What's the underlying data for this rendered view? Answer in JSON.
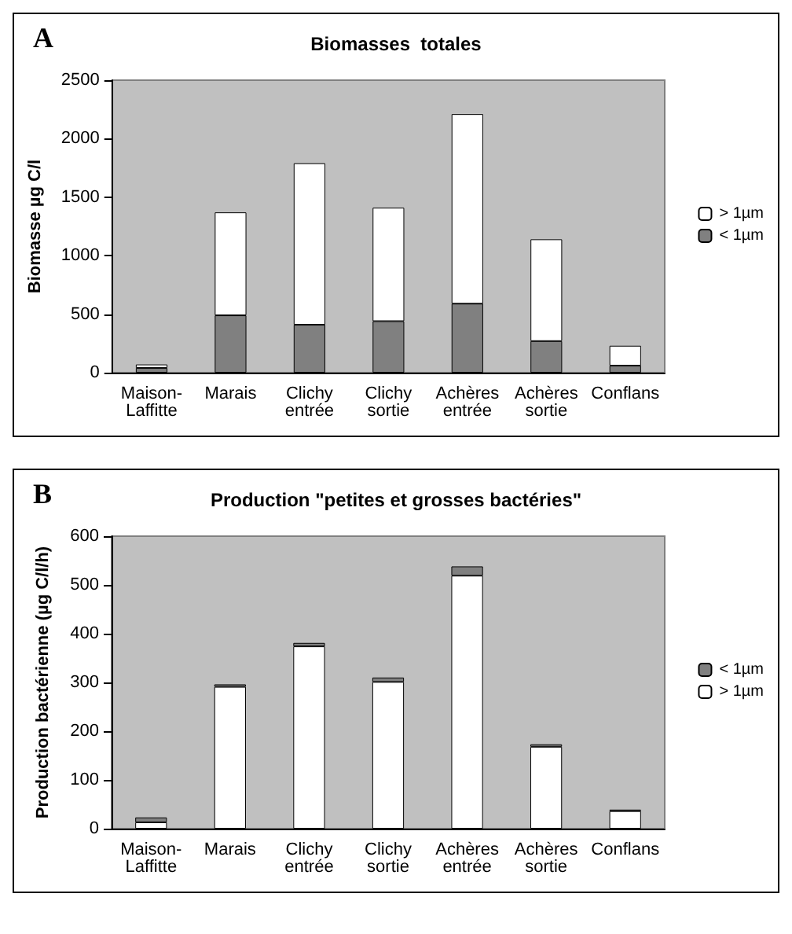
{
  "chart_data": [
    {
      "type": "bar",
      "title": "Biomasses  totales",
      "ylabel": "Biomasse µg C/l",
      "annotations": [
        "A"
      ],
      "stacked": true,
      "categories": [
        "Maison-\nLaffitte",
        "Marais",
        "Clichy\nentrée",
        "Clichy\nsortie",
        "Achères\nentrée",
        "Achères\nsortie",
        "Conflans"
      ],
      "series": [
        {
          "name": "< 1µm",
          "color": "#808080",
          "values": [
            40,
            490,
            410,
            440,
            590,
            270,
            60
          ]
        },
        {
          "name": "> 1µm",
          "color": "#ffffff",
          "values": [
            30,
            880,
            1380,
            970,
            1620,
            870,
            170
          ]
        }
      ],
      "ylim": [
        0,
        2500
      ],
      "yticks": [
        0,
        500,
        1000,
        1500,
        2000,
        2500
      ],
      "grid": false,
      "legend": "right"
    },
    {
      "type": "bar",
      "title": "Production \"petites et grosses bactéries\"",
      "ylabel": "Production bactérienne (µg C/l/h)",
      "annotations": [
        "B"
      ],
      "stacked": true,
      "categories": [
        "Maison-\nLaffitte",
        "Marais",
        "Clichy\nentrée",
        "Clichy\nsortie",
        "Achères\nentrée",
        "Achères\nsortie",
        "Conflans"
      ],
      "series": [
        {
          "name": "> 1µm",
          "color": "#ffffff",
          "values": [
            13,
            291,
            374,
            301,
            519,
            168,
            36
          ]
        },
        {
          "name": "< 1µm",
          "color": "#808080",
          "values": [
            10,
            5,
            7,
            9,
            19,
            5,
            3
          ]
        }
      ],
      "ylim": [
        0,
        600
      ],
      "yticks": [
        0,
        100,
        200,
        300,
        400,
        500,
        600
      ],
      "grid": false,
      "legend": "right"
    }
  ]
}
